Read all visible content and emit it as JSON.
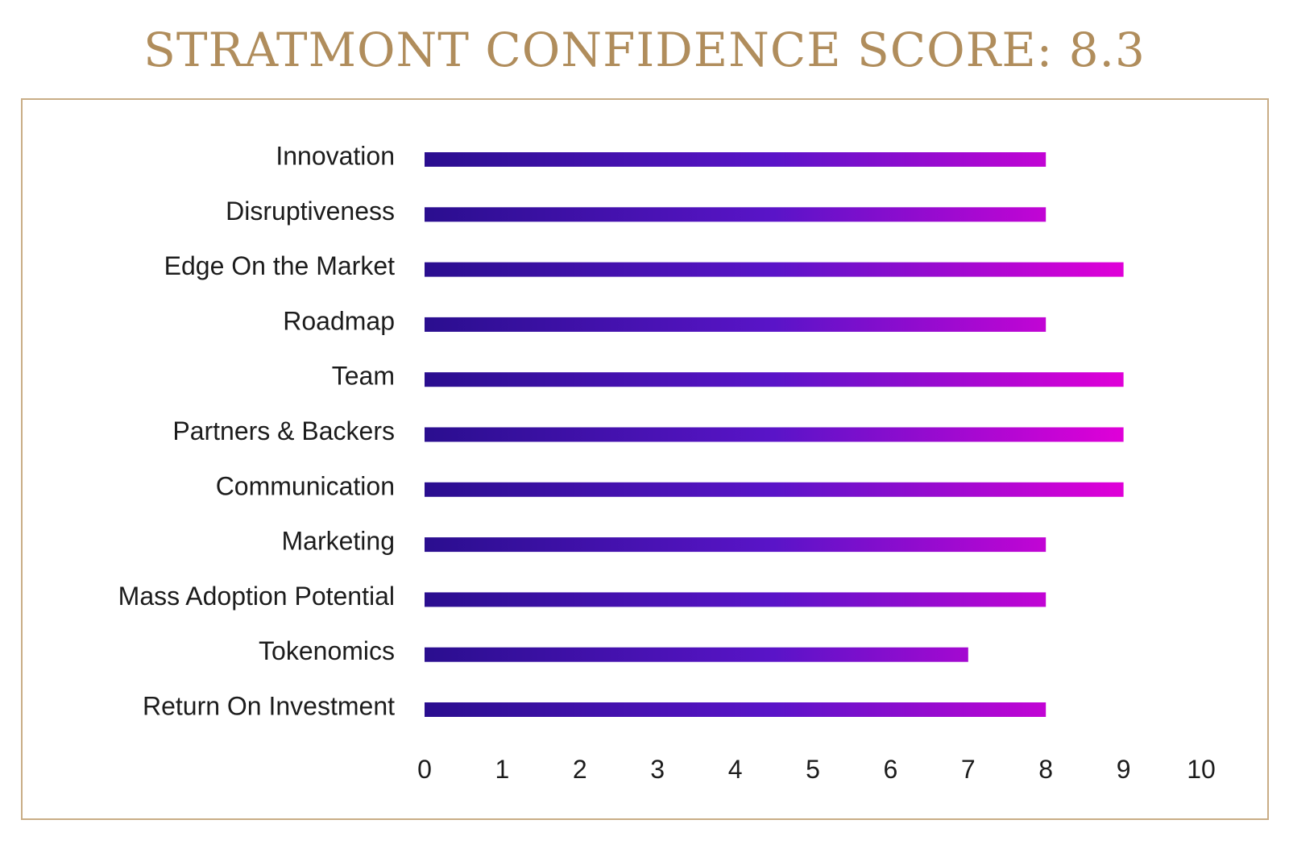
{
  "title": "STRATMONT CONFIDENCE SCORE: 8.3",
  "colors": {
    "title": "#b08d5c",
    "frame_border": "#c9ad86",
    "bar_gradient_start": "#2a0e8f",
    "bar_gradient_mid": "#5a14c8",
    "bar_gradient_end": "#e000d8",
    "text": "#1c1c1c"
  },
  "chart_data": {
    "type": "bar",
    "orientation": "horizontal",
    "title": "STRATMONT CONFIDENCE SCORE: 8.3",
    "categories": [
      "Innovation",
      "Disruptiveness",
      "Edge On the Market",
      "Roadmap",
      "Team",
      "Partners & Backers",
      "Communication",
      "Marketing",
      "Mass Adoption Potential",
      "Tokenomics",
      "Return On Investment"
    ],
    "values": [
      8,
      8,
      9,
      8,
      9,
      9,
      9,
      8,
      8,
      7,
      8
    ],
    "xlim": [
      0,
      10
    ],
    "xticks": [
      "0",
      "1",
      "2",
      "3",
      "4",
      "5",
      "6",
      "7",
      "8",
      "9",
      "10"
    ],
    "xlabel": "",
    "ylabel": "",
    "grid": false,
    "legend": "none"
  }
}
